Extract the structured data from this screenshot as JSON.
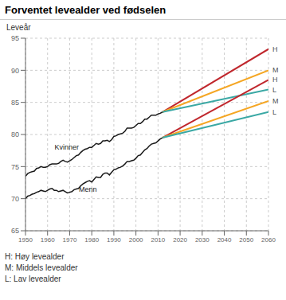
{
  "chart_data": {
    "type": "line",
    "title": "Forventet levealder ved fødselen",
    "y_label": "Leveår",
    "xlim": [
      1950,
      2060
    ],
    "ylim": [
      65,
      95
    ],
    "xticks": [
      1950,
      1960,
      1970,
      1980,
      1990,
      2000,
      2010,
      2020,
      2030,
      2040,
      2050,
      2060
    ],
    "yticks": [
      65,
      70,
      75,
      80,
      85,
      90,
      95
    ],
    "grid": true,
    "x": [
      1950,
      1951,
      1952,
      1953,
      1954,
      1955,
      1956,
      1957,
      1958,
      1959,
      1960,
      1961,
      1962,
      1963,
      1964,
      1965,
      1966,
      1967,
      1968,
      1969,
      1970,
      1971,
      1972,
      1973,
      1974,
      1975,
      1976,
      1977,
      1978,
      1979,
      1980,
      1981,
      1982,
      1983,
      1984,
      1985,
      1986,
      1987,
      1988,
      1989,
      1990,
      1991,
      1992,
      1993,
      1994,
      1995,
      1996,
      1997,
      1998,
      1999,
      2000,
      2001,
      2002,
      2003,
      2004,
      2005,
      2006,
      2007,
      2008,
      2009,
      2010,
      2011,
      2012
    ],
    "series": [
      {
        "name": "Kvinner",
        "color": "#1a1a1a",
        "values": [
          73.5,
          73.9,
          74.1,
          74.2,
          74.3,
          74.7,
          74.8,
          75.0,
          74.9,
          74.9,
          75.0,
          75.3,
          75.4,
          75.4,
          75.4,
          75.5,
          75.8,
          76.0,
          75.8,
          75.7,
          75.9,
          76.1,
          76.4,
          76.7,
          76.8,
          77.2,
          77.5,
          77.7,
          77.8,
          78.0,
          78.0,
          78.3,
          78.6,
          78.5,
          78.6,
          79.0,
          79.0,
          79.1,
          78.9,
          79.2,
          79.7,
          79.8,
          80.0,
          80.1,
          80.2,
          80.5,
          81.0,
          81.0,
          81.0,
          81.1,
          81.4,
          81.7,
          81.7,
          82.0,
          82.4,
          82.4,
          82.7,
          83.0,
          83.0,
          83.0,
          83.2,
          83.3,
          83.5
        ]
      },
      {
        "name": "Menn",
        "color": "#1a1a1a",
        "values": [
          70.0,
          70.4,
          70.5,
          70.7,
          70.8,
          71.0,
          71.1,
          71.3,
          71.2,
          71.1,
          71.3,
          71.5,
          71.6,
          71.3,
          71.3,
          71.1,
          71.2,
          71.3,
          71.1,
          70.9,
          71.0,
          71.1,
          71.4,
          71.5,
          71.6,
          72.0,
          72.3,
          72.5,
          72.7,
          72.8,
          72.6,
          73.0,
          73.4,
          73.3,
          73.3,
          73.8,
          74.0,
          74.0,
          73.7,
          74.1,
          74.5,
          74.6,
          74.8,
          74.9,
          75.1,
          75.4,
          75.8,
          75.8,
          75.9,
          76.0,
          76.3,
          76.7,
          76.8,
          77.2,
          77.6,
          77.8,
          78.2,
          78.5,
          78.6,
          78.7,
          79.0,
          79.3,
          79.5
        ]
      }
    ],
    "projections": [
      {
        "name": "H",
        "color": "#c0272d",
        "x": [
          2012,
          2060
        ],
        "values": [
          83.5,
          93.3
        ]
      },
      {
        "name": "M",
        "color": "#f5a623",
        "x": [
          2012,
          2060
        ],
        "values": [
          83.5,
          90.0
        ]
      },
      {
        "name": "L",
        "color": "#3aa8a4",
        "x": [
          2012,
          2060
        ],
        "values": [
          83.5,
          87.0
        ]
      },
      {
        "name": "H",
        "color": "#c0272d",
        "x": [
          2012,
          2060
        ],
        "values": [
          79.5,
          88.5
        ]
      },
      {
        "name": "M",
        "color": "#f5a623",
        "x": [
          2012,
          2060
        ],
        "values": [
          79.5,
          85.2
        ]
      },
      {
        "name": "L",
        "color": "#3aa8a4",
        "x": [
          2012,
          2060
        ],
        "values": [
          79.5,
          83.5
        ]
      }
    ],
    "annotations": [
      {
        "text": "Kvinner",
        "x": 1961,
        "y": 78.0
      },
      {
        "text": "Menn",
        "x": 1972,
        "y": 71.5
      }
    ],
    "notes": [
      "H: Høy levealder",
      "M: Middels levealder",
      "L: Lav levealder"
    ]
  }
}
